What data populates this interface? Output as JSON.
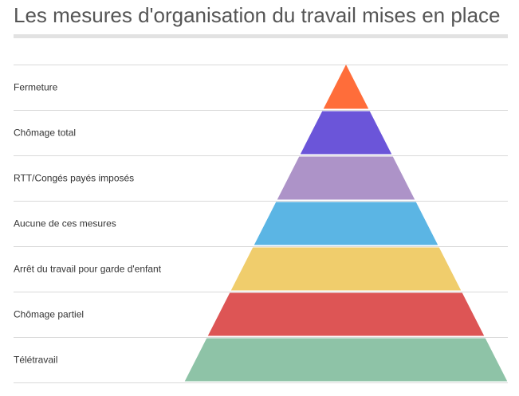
{
  "chart_data": {
    "type": "pyramid",
    "title": "Les mesures d'organisation du travail mises en place",
    "levels": [
      {
        "label": "Fermeture",
        "color": "#ff6d3a"
      },
      {
        "label": "Chômage total",
        "color": "#6b55d9"
      },
      {
        "label": "RTT/Congés payés imposés",
        "color": "#ad93c8"
      },
      {
        "label": "Aucune de ces mesures",
        "color": "#5bb5e4"
      },
      {
        "label": "Arrêt du travail pour garde d'enfant",
        "color": "#f0cd6c"
      },
      {
        "label": "Chômage partiel",
        "color": "#dd5555"
      },
      {
        "label": "Télétravail",
        "color": "#8ec3a7"
      }
    ]
  }
}
